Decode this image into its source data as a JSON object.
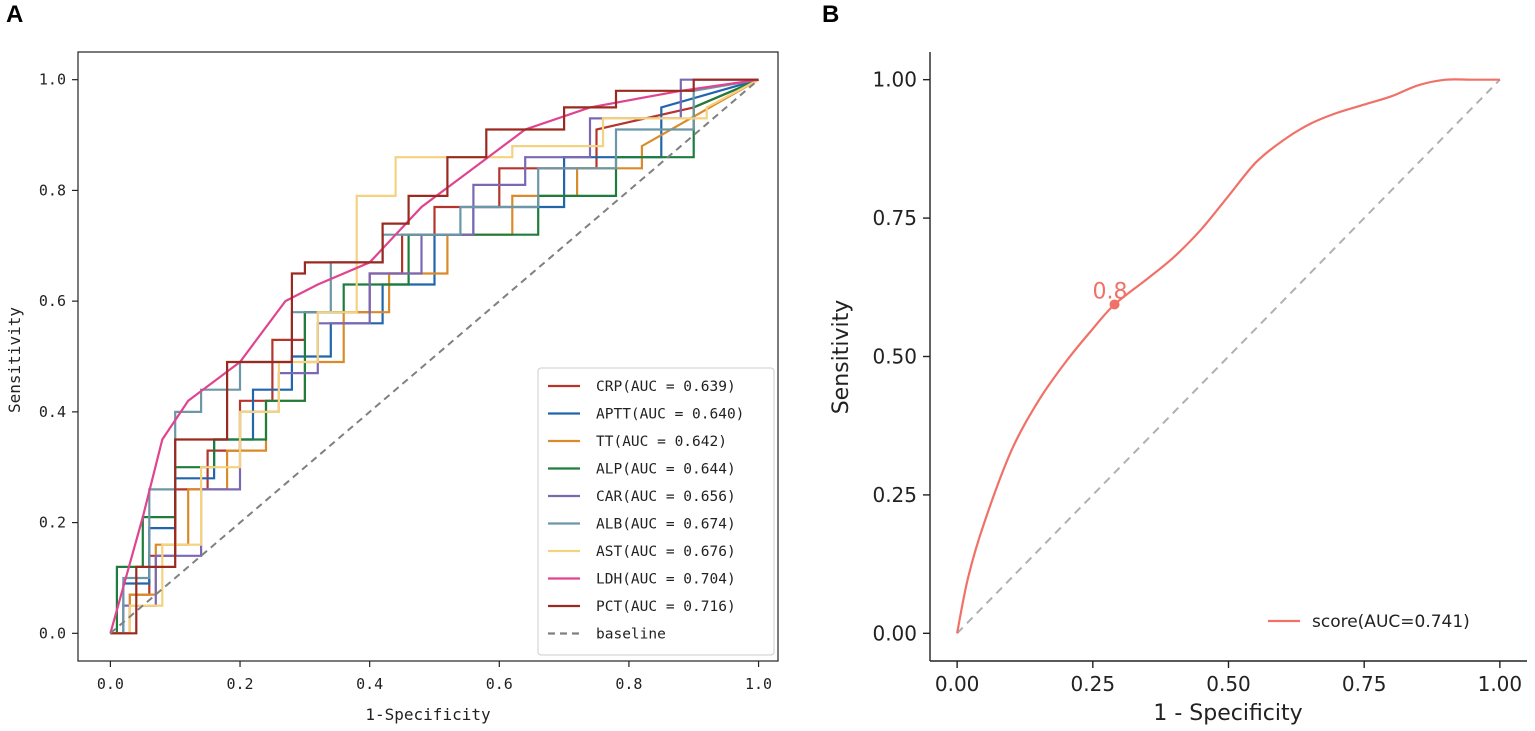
{
  "chart_data": [
    {
      "panel_label": "A",
      "type": "line",
      "title": "",
      "xlabel": "1-Specificity",
      "ylabel": "Sensitivity",
      "xlim": [
        -0.05,
        1.03
      ],
      "ylim": [
        -0.05,
        1.05
      ],
      "xticks": [
        0.0,
        0.2,
        0.4,
        0.6,
        0.8,
        1.0
      ],
      "xtick_labels": [
        "0.0",
        "0.2",
        "0.4",
        "0.6",
        "0.8",
        "1.0"
      ],
      "yticks": [
        0.0,
        0.2,
        0.4,
        0.6,
        0.8,
        1.0
      ],
      "ytick_labels": [
        "0.0",
        "0.2",
        "0.4",
        "0.6",
        "0.8",
        "1.0"
      ],
      "legend_position": "lower-right",
      "series": [
        {
          "name": "CRP(AUC = 0.639)",
          "color": "#b5352c",
          "x": [
            0.0,
            0.03,
            0.03,
            0.06,
            0.06,
            0.1,
            0.1,
            0.15,
            0.15,
            0.2,
            0.2,
            0.25,
            0.25,
            0.3,
            0.3,
            0.4,
            0.4,
            0.45,
            0.45,
            0.5,
            0.5,
            0.6,
            0.6,
            0.75,
            0.75,
            0.9,
            1.0
          ],
          "y": [
            0.0,
            0.0,
            0.07,
            0.07,
            0.14,
            0.14,
            0.26,
            0.26,
            0.33,
            0.33,
            0.42,
            0.42,
            0.53,
            0.53,
            0.58,
            0.58,
            0.65,
            0.65,
            0.72,
            0.72,
            0.77,
            0.77,
            0.84,
            0.84,
            0.91,
            0.95,
            1.0
          ]
        },
        {
          "name": "APTT(AUC = 0.640)",
          "color": "#2166ac",
          "x": [
            0.0,
            0.02,
            0.02,
            0.06,
            0.06,
            0.1,
            0.1,
            0.16,
            0.16,
            0.22,
            0.22,
            0.28,
            0.28,
            0.34,
            0.34,
            0.42,
            0.42,
            0.5,
            0.5,
            0.56,
            0.56,
            0.7,
            0.7,
            0.85,
            0.85,
            1.0
          ],
          "y": [
            0.0,
            0.0,
            0.09,
            0.09,
            0.19,
            0.19,
            0.28,
            0.28,
            0.35,
            0.35,
            0.44,
            0.44,
            0.5,
            0.5,
            0.56,
            0.56,
            0.63,
            0.63,
            0.72,
            0.72,
            0.77,
            0.77,
            0.86,
            0.86,
            0.95,
            1.0
          ]
        },
        {
          "name": "TT(AUC = 0.642)",
          "color": "#d98b2b",
          "x": [
            0.0,
            0.03,
            0.03,
            0.07,
            0.07,
            0.12,
            0.12,
            0.18,
            0.18,
            0.24,
            0.24,
            0.3,
            0.3,
            0.36,
            0.36,
            0.43,
            0.43,
            0.52,
            0.52,
            0.62,
            0.62,
            0.72,
            0.72,
            0.82,
            0.82,
            1.0
          ],
          "y": [
            0.0,
            0.0,
            0.07,
            0.07,
            0.16,
            0.16,
            0.26,
            0.26,
            0.33,
            0.33,
            0.42,
            0.42,
            0.49,
            0.49,
            0.58,
            0.58,
            0.65,
            0.65,
            0.72,
            0.72,
            0.79,
            0.79,
            0.84,
            0.84,
            0.88,
            1.0
          ]
        },
        {
          "name": "ALP(AUC = 0.644)",
          "color": "#1e7d3c",
          "x": [
            0.0,
            0.01,
            0.01,
            0.05,
            0.05,
            0.1,
            0.1,
            0.16,
            0.16,
            0.24,
            0.24,
            0.3,
            0.3,
            0.36,
            0.36,
            0.46,
            0.46,
            0.56,
            0.56,
            0.66,
            0.66,
            0.78,
            0.78,
            0.9,
            0.9,
            1.0
          ],
          "y": [
            0.0,
            0.0,
            0.12,
            0.12,
            0.21,
            0.21,
            0.3,
            0.3,
            0.35,
            0.35,
            0.42,
            0.42,
            0.58,
            0.58,
            0.63,
            0.63,
            0.72,
            0.72,
            0.72,
            0.72,
            0.79,
            0.79,
            0.86,
            0.86,
            0.95,
            1.0
          ]
        },
        {
          "name": "CAR(AUC = 0.656)",
          "color": "#7b68b5",
          "x": [
            0.0,
            0.02,
            0.02,
            0.07,
            0.07,
            0.14,
            0.14,
            0.2,
            0.2,
            0.26,
            0.26,
            0.32,
            0.32,
            0.4,
            0.4,
            0.48,
            0.48,
            0.56,
            0.56,
            0.64,
            0.64,
            0.74,
            0.74,
            0.88,
            0.88,
            1.0
          ],
          "y": [
            0.0,
            0.0,
            0.05,
            0.05,
            0.14,
            0.14,
            0.26,
            0.26,
            0.4,
            0.4,
            0.47,
            0.47,
            0.56,
            0.56,
            0.65,
            0.65,
            0.72,
            0.72,
            0.81,
            0.81,
            0.86,
            0.86,
            0.93,
            0.93,
            1.0,
            1.0
          ]
        },
        {
          "name": "ALB(AUC = 0.674)",
          "color": "#6b97a8",
          "x": [
            0.0,
            0.02,
            0.02,
            0.06,
            0.06,
            0.1,
            0.1,
            0.14,
            0.14,
            0.2,
            0.2,
            0.28,
            0.28,
            0.34,
            0.34,
            0.42,
            0.42,
            0.54,
            0.54,
            0.66,
            0.66,
            0.78,
            0.78,
            0.9,
            0.9,
            1.0
          ],
          "y": [
            0.0,
            0.0,
            0.1,
            0.1,
            0.26,
            0.26,
            0.4,
            0.4,
            0.44,
            0.44,
            0.49,
            0.49,
            0.58,
            0.58,
            0.67,
            0.67,
            0.72,
            0.72,
            0.77,
            0.77,
            0.84,
            0.84,
            0.91,
            0.91,
            0.98,
            1.0
          ]
        },
        {
          "name": "AST(AUC = 0.676)",
          "color": "#f4d27f",
          "x": [
            0.0,
            0.03,
            0.03,
            0.08,
            0.08,
            0.14,
            0.14,
            0.2,
            0.2,
            0.26,
            0.26,
            0.32,
            0.32,
            0.38,
            0.38,
            0.44,
            0.44,
            0.52,
            0.52,
            0.62,
            0.62,
            0.76,
            0.76,
            0.92,
            0.92,
            1.0
          ],
          "y": [
            0.0,
            0.0,
            0.05,
            0.05,
            0.16,
            0.16,
            0.3,
            0.3,
            0.4,
            0.4,
            0.49,
            0.49,
            0.58,
            0.58,
            0.79,
            0.79,
            0.86,
            0.86,
            0.86,
            0.86,
            0.88,
            0.88,
            0.93,
            0.93,
            0.95,
            1.0
          ]
        },
        {
          "name": "LDH(AUC = 0.704)",
          "color": "#e0448f",
          "x": [
            0.0,
            0.05,
            0.08,
            0.08,
            0.12,
            0.12,
            0.2,
            0.2,
            0.27,
            0.27,
            0.32,
            0.32,
            0.4,
            0.4,
            0.48,
            0.48,
            0.56,
            0.56,
            0.64,
            0.64,
            0.74,
            0.74,
            0.88,
            0.88,
            1.0
          ],
          "y": [
            0.0,
            0.21,
            0.35,
            0.35,
            0.42,
            0.42,
            0.49,
            0.49,
            0.6,
            0.6,
            0.63,
            0.63,
            0.67,
            0.67,
            0.77,
            0.77,
            0.84,
            0.84,
            0.91,
            0.91,
            0.95,
            0.95,
            0.98,
            0.98,
            1.0
          ]
        },
        {
          "name": "PCT(AUC = 0.716)",
          "color": "#9a2a1f",
          "x": [
            0.0,
            0.04,
            0.04,
            0.1,
            0.1,
            0.18,
            0.18,
            0.28,
            0.28,
            0.3,
            0.3,
            0.42,
            0.42,
            0.46,
            0.46,
            0.52,
            0.52,
            0.58,
            0.58,
            0.7,
            0.7,
            0.78,
            0.78,
            0.9,
            0.9,
            1.0
          ],
          "y": [
            0.0,
            0.0,
            0.12,
            0.12,
            0.35,
            0.35,
            0.49,
            0.49,
            0.65,
            0.65,
            0.67,
            0.67,
            0.74,
            0.74,
            0.79,
            0.79,
            0.86,
            0.86,
            0.91,
            0.91,
            0.95,
            0.95,
            0.98,
            0.98,
            1.0,
            1.0
          ]
        },
        {
          "name": "baseline",
          "color": "#808080",
          "dashed": true,
          "x": [
            0.0,
            1.0
          ],
          "y": [
            0.0,
            1.0
          ]
        }
      ]
    },
    {
      "panel_label": "B",
      "type": "line",
      "title": "",
      "xlabel": "1 - Specificity",
      "ylabel": "Sensitivity",
      "xlim": [
        -0.05,
        1.05
      ],
      "ylim": [
        -0.05,
        1.05
      ],
      "xticks": [
        0.0,
        0.25,
        0.5,
        0.75,
        1.0
      ],
      "xtick_labels": [
        "0.00",
        "0.25",
        "0.50",
        "0.75",
        "1.00"
      ],
      "yticks": [
        0.0,
        0.25,
        0.5,
        0.75,
        1.0
      ],
      "ytick_labels": [
        "0.00",
        "0.25",
        "0.50",
        "0.75",
        "1.00"
      ],
      "legend_position": "lower-right",
      "series": [
        {
          "name": "score(AUC=0.741)",
          "color": "#f07167",
          "x": [
            0.0,
            0.02,
            0.05,
            0.1,
            0.15,
            0.2,
            0.25,
            0.29,
            0.35,
            0.4,
            0.45,
            0.5,
            0.55,
            0.6,
            0.65,
            0.7,
            0.75,
            0.8,
            0.85,
            0.9,
            0.95,
            1.0
          ],
          "y": [
            0.0,
            0.1,
            0.2,
            0.33,
            0.42,
            0.49,
            0.55,
            0.594,
            0.64,
            0.68,
            0.73,
            0.79,
            0.85,
            0.89,
            0.92,
            0.94,
            0.955,
            0.97,
            0.99,
            1.0,
            1.0,
            1.0
          ]
        },
        {
          "name": "baseline",
          "color": "#b0b0b0",
          "dashed": true,
          "x": [
            0.0,
            1.0
          ],
          "y": [
            0.0,
            1.0
          ]
        }
      ],
      "annotation": {
        "text": "0.8",
        "x": 0.29,
        "y": 0.594,
        "color": "#f07167"
      }
    }
  ]
}
